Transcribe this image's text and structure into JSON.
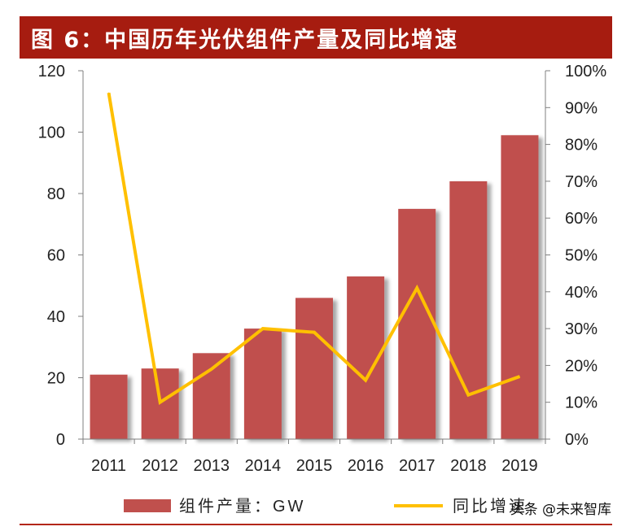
{
  "header": {
    "title": "图 6：中国历年光伏组件产量及同比增速"
  },
  "watermark": {
    "text": "头条 @未来智库"
  },
  "chart_data": {
    "type": "bar",
    "categories": [
      "2011",
      "2012",
      "2013",
      "2014",
      "2015",
      "2016",
      "2017",
      "2018",
      "2019"
    ],
    "series": [
      {
        "name": "组件产量：GW",
        "type": "bar",
        "axis": "left",
        "color": "#c0504d",
        "values": [
          21,
          23,
          28,
          36,
          46,
          53,
          75,
          84,
          99
        ]
      },
      {
        "name": "同比增速",
        "type": "line",
        "axis": "right",
        "color": "#ffc000",
        "values": [
          0.94,
          0.1,
          0.19,
          0.3,
          0.29,
          0.16,
          0.41,
          0.12,
          0.17
        ]
      }
    ],
    "ylim_left": [
      0,
      120
    ],
    "yticks_left": [
      "0",
      "20",
      "40",
      "60",
      "80",
      "100",
      "120"
    ],
    "ylim_right": [
      0,
      1
    ],
    "yticks_right": [
      "0%",
      "10%",
      "20%",
      "30%",
      "40%",
      "50%",
      "60%",
      "70%",
      "80%",
      "90%",
      "100%"
    ],
    "grid": false,
    "legend_position": "bottom"
  }
}
